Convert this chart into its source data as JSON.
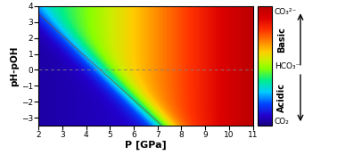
{
  "xlim": [
    2,
    11
  ],
  "ylim": [
    -3.5,
    4
  ],
  "xlabel": "P [GPa]",
  "ylabel": "pH-pOH",
  "xticks": [
    2,
    3,
    4,
    5,
    6,
    7,
    8,
    9,
    10,
    11
  ],
  "yticks": [
    -3,
    -2,
    -1,
    0,
    1,
    2,
    3,
    4
  ],
  "colorbar_labels_top": "CO₃²⁻",
  "colorbar_labels_mid": "HCO₃⁻",
  "colorbar_labels_bot": "CO₂",
  "basic_label": "Basic",
  "acidic_label": "Acidic",
  "boundary_curve_color": [
    0.55,
    0.25,
    0.05,
    0.55
  ],
  "dashed_y": 0,
  "cmap_colors": [
    [
      0.0,
      "#1a0082"
    ],
    [
      0.08,
      "#2200cc"
    ],
    [
      0.18,
      "#0044ff"
    ],
    [
      0.28,
      "#00ccff"
    ],
    [
      0.38,
      "#00ee88"
    ],
    [
      0.48,
      "#88ff00"
    ],
    [
      0.55,
      "#ccee00"
    ],
    [
      0.62,
      "#ffcc00"
    ],
    [
      0.7,
      "#ff8800"
    ],
    [
      0.8,
      "#ff3300"
    ],
    [
      0.9,
      "#dd0000"
    ],
    [
      1.0,
      "#bb0000"
    ]
  ]
}
